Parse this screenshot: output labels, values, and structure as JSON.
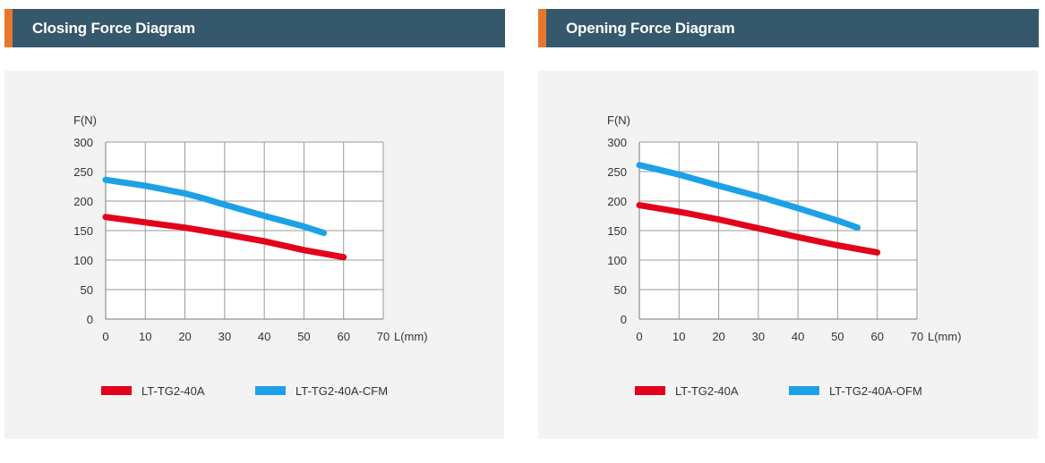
{
  "chart_data": [
    {
      "type": "line",
      "title": "Closing Force Diagram",
      "xlabel": "L(mm)",
      "ylabel": "F(N)",
      "xlim": [
        0,
        70
      ],
      "ylim": [
        0,
        300
      ],
      "xticks": [
        0,
        10,
        20,
        30,
        40,
        50,
        60,
        70
      ],
      "yticks": [
        0,
        50,
        100,
        150,
        200,
        250,
        300
      ],
      "grid": true,
      "legend_position": "bottom",
      "series": [
        {
          "name": "LT-TG2-40A",
          "color": "#e3001b",
          "x": [
            0,
            10,
            20,
            30,
            40,
            50,
            60
          ],
          "y": [
            173,
            164,
            155,
            144,
            132,
            117,
            105
          ]
        },
        {
          "name": "LT-TG2-40A-CFM",
          "color": "#1da1e6",
          "x": [
            0,
            10,
            20,
            25,
            30,
            40,
            50,
            55
          ],
          "y": [
            236,
            226,
            213,
            204,
            194,
            175,
            157,
            146
          ]
        }
      ]
    },
    {
      "type": "line",
      "title": "Opening Force Diagram",
      "xlabel": "L(mm)",
      "ylabel": "F(N)",
      "xlim": [
        0,
        70
      ],
      "ylim": [
        0,
        300
      ],
      "xticks": [
        0,
        10,
        20,
        30,
        40,
        50,
        60,
        70
      ],
      "yticks": [
        0,
        50,
        100,
        150,
        200,
        250,
        300
      ],
      "grid": true,
      "legend_position": "bottom",
      "series": [
        {
          "name": "LT-TG2-40A",
          "color": "#e3001b",
          "x": [
            0,
            10,
            20,
            30,
            40,
            50,
            60
          ],
          "y": [
            193,
            182,
            169,
            154,
            139,
            125,
            113
          ]
        },
        {
          "name": "LT-TG2-40A-OFM",
          "color": "#1da1e6",
          "x": [
            0,
            10,
            20,
            30,
            40,
            50,
            55
          ],
          "y": [
            261,
            245,
            226,
            208,
            188,
            167,
            155
          ]
        }
      ]
    }
  ]
}
